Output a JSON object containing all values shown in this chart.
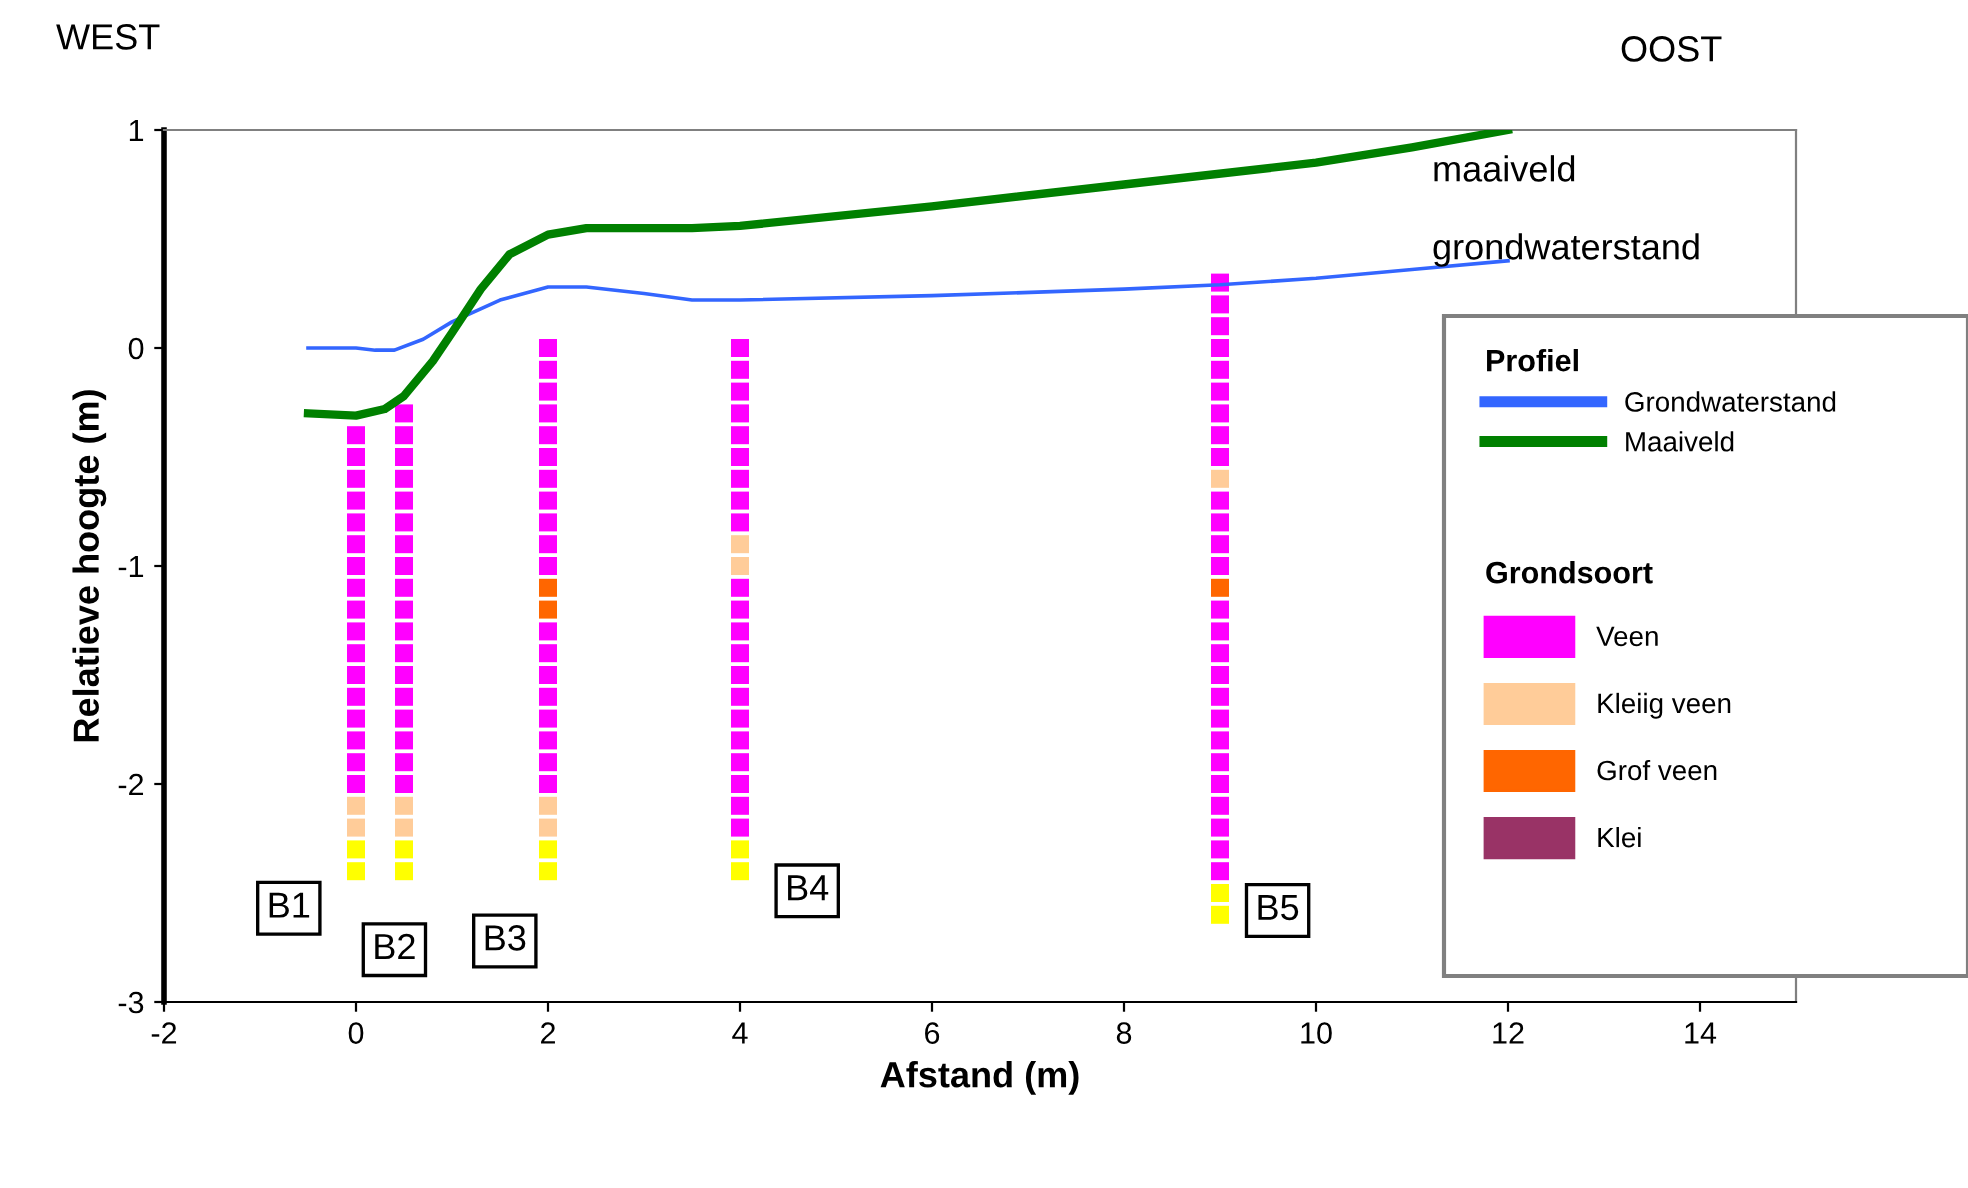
{
  "chart_data": {
    "type": "scatter",
    "xlabel": "Afstand (m)",
    "ylabel": "Relatieve hoogte (m)",
    "xlim": [
      -2,
      15
    ],
    "ylim": [
      -3,
      1
    ],
    "xticks": [
      -2,
      0,
      2,
      4,
      6,
      8,
      10,
      12,
      14
    ],
    "yticks": [
      -3,
      -2,
      -1,
      0,
      1
    ],
    "grid": false,
    "legend": "right",
    "legend_title": [
      "Profiel",
      "Grondsoort"
    ],
    "marker": "square",
    "series": [
      {
        "name": "Grondwaterstand",
        "type": "line",
        "color": "#3366ff",
        "marker": "none",
        "x": [
          -0.5,
          0,
          0.2,
          0.4,
          0.7,
          1.0,
          1.5,
          2.0,
          2.4,
          3.0,
          3.5,
          4.0,
          6.0,
          8.0,
          9.0,
          10.0,
          11.0,
          12.0
        ],
        "values": [
          0,
          0,
          -0.01,
          -0.01,
          0.04,
          0.12,
          0.22,
          0.28,
          0.28,
          0.25,
          0.22,
          0.22,
          0.24,
          0.27,
          0.29,
          0.32,
          0.36,
          0.4
        ]
      },
      {
        "name": "Maaiveld",
        "type": "line",
        "color": "#008000",
        "marker": "none",
        "x": [
          -0.5,
          0,
          0.3,
          0.5,
          0.8,
          1.0,
          1.3,
          1.6,
          2.0,
          2.4,
          3.0,
          3.5,
          4.0,
          6.0,
          8.0,
          10.0,
          11.0,
          12.0
        ],
        "values": [
          -0.3,
          -0.31,
          -0.28,
          -0.22,
          -0.06,
          0.07,
          0.27,
          0.43,
          0.52,
          0.55,
          0.55,
          0.55,
          0.56,
          0.65,
          0.75,
          0.85,
          0.92,
          1.0
        ]
      },
      {
        "name": "Veen",
        "color": "#ff00ff",
        "x": [
          0,
          0,
          0,
          0,
          0,
          0,
          0,
          0,
          0,
          0,
          0,
          0,
          0,
          0,
          0,
          0,
          0,
          0.5,
          0.5,
          0.5,
          0.5,
          0.5,
          0.5,
          0.5,
          0.5,
          0.5,
          0.5,
          0.5,
          0.5,
          0.5,
          0.5,
          0.5,
          0.5,
          0.5,
          0.5,
          2,
          2,
          2,
          2,
          2,
          2,
          2,
          2,
          2,
          2,
          2,
          2,
          2,
          2,
          2,
          2,
          2,
          2,
          2,
          4,
          4,
          4,
          4,
          4,
          4,
          4,
          4,
          4,
          4,
          4,
          4,
          4,
          4,
          4,
          4,
          4,
          4,
          4,
          4,
          4,
          9,
          9,
          9,
          9,
          9,
          9,
          9,
          9,
          9,
          9,
          9,
          9,
          9,
          9,
          9,
          9,
          9,
          9,
          9,
          9,
          9,
          9,
          9,
          9,
          9,
          9
        ],
        "values": [
          -0.4,
          -0.5,
          -0.6,
          -0.7,
          -0.8,
          -0.9,
          -1.0,
          -1.1,
          -1.2,
          -1.3,
          -1.4,
          -1.5,
          -1.6,
          -1.7,
          -1.8,
          -1.9,
          -2.0,
          -0.3,
          -0.4,
          -0.5,
          -0.6,
          -0.7,
          -0.8,
          -0.9,
          -1.0,
          -1.1,
          -1.2,
          -1.3,
          -1.4,
          -1.5,
          -1.6,
          -1.7,
          -1.8,
          -1.9,
          -2.0,
          0,
          -0.1,
          -0.2,
          -0.3,
          -0.4,
          -0.5,
          -0.6,
          -0.7,
          -0.8,
          -0.9,
          -1.0,
          -1.3,
          -1.4,
          -1.5,
          -1.6,
          -1.7,
          -1.8,
          -1.9,
          -2.0,
          0,
          -0.1,
          -0.2,
          -0.3,
          -0.4,
          -0.5,
          -0.6,
          -0.7,
          -0.8,
          -1.1,
          -1.2,
          -1.3,
          -1.4,
          -1.5,
          -1.6,
          -1.7,
          -1.8,
          -1.9,
          -2.0,
          -2.1,
          -2.2,
          0.3,
          0.2,
          0.1,
          0,
          -0.1,
          -0.2,
          -0.3,
          -0.4,
          -0.5,
          -0.7,
          -0.8,
          -0.9,
          -1.0,
          -1.2,
          -1.3,
          -1.4,
          -1.5,
          -1.6,
          -1.7,
          -1.8,
          -1.9,
          -2.0,
          -2.1,
          -2.2,
          -2.3,
          -2.4
        ]
      },
      {
        "name": "Kleiig veen",
        "color": "#ffcc99",
        "x": [
          0,
          0,
          0.5,
          0.5,
          2,
          2,
          4,
          4,
          9
        ],
        "values": [
          -2.1,
          -2.2,
          -2.1,
          -2.2,
          -2.1,
          -2.2,
          -0.9,
          -1.0,
          -0.6
        ]
      },
      {
        "name": "Grof veen",
        "color": "#ff6600",
        "x": [
          2,
          2,
          9
        ],
        "values": [
          -1.1,
          -1.2,
          -1.1
        ]
      },
      {
        "name": "Klei",
        "color": "#993366"
      },
      {
        "color": "#ffff00",
        "x": [
          0,
          0,
          0.5,
          0.5,
          2,
          2,
          4,
          4,
          9,
          9
        ],
        "values": [
          -2.3,
          -2.4,
          -2.3,
          -2.4,
          -2.3,
          -2.4,
          -2.3,
          -2.4,
          -2.5,
          -2.6
        ]
      }
    ],
    "annotations": [
      "WEST",
      "OOST",
      "maaiveld",
      "grondwaterstand",
      {
        "text": "B1",
        "x": -0.7,
        "y": -2.57
      },
      {
        "text": "B2",
        "x": 0.4,
        "y": -2.76
      },
      {
        "text": "B3",
        "x": 1.55,
        "y": -2.72
      },
      {
        "text": "B4",
        "x": 4.7,
        "y": -2.49
      },
      {
        "text": "B5",
        "x": 9.6,
        "y": -2.58
      }
    ]
  }
}
